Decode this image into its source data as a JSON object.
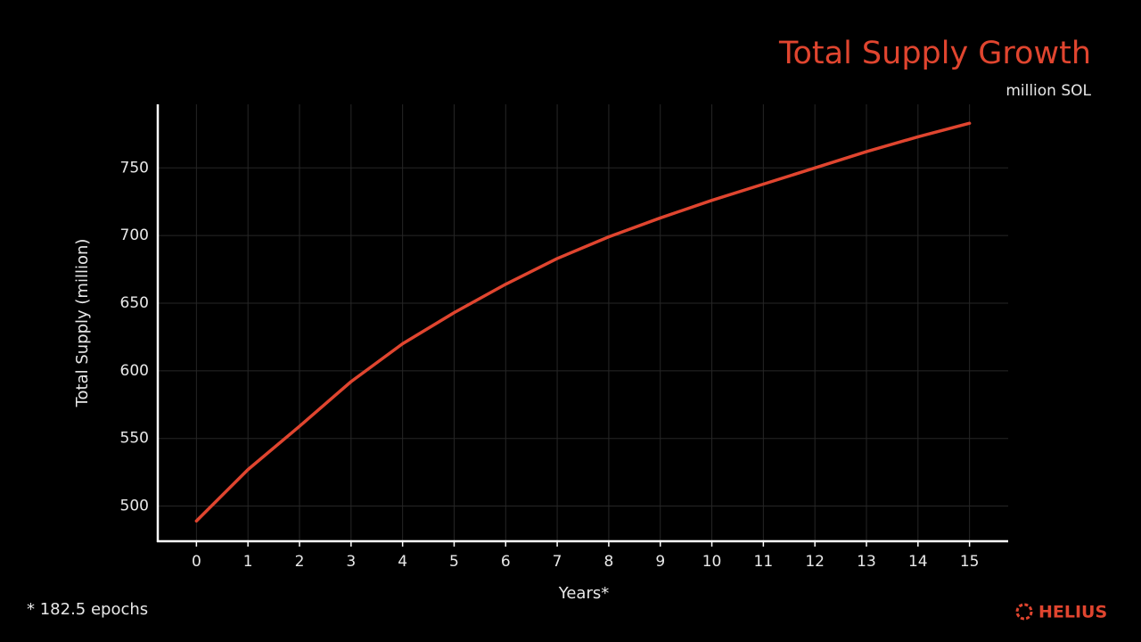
{
  "chart_data": {
    "type": "line",
    "title": "Total Supply Growth",
    "subtitle": "million SOL",
    "x_label": "Years*",
    "y_label": "Total Supply (million)",
    "footnote": "* 182.5 epochs",
    "brand": "HELIUS",
    "x": [
      0,
      1,
      2,
      3,
      4,
      5,
      6,
      7,
      8,
      9,
      10,
      11,
      12,
      13,
      14,
      15
    ],
    "series": [
      {
        "name": "Total Supply",
        "color": "#e0452f",
        "values": [
          489,
          527,
          559,
          592,
          620,
          643,
          664,
          683,
          699,
          713,
          726,
          738,
          750,
          762,
          773,
          783
        ]
      }
    ],
    "xlim": [
      -0.75,
      15.75
    ],
    "xticks": [
      0,
      1,
      2,
      3,
      4,
      5,
      6,
      7,
      8,
      9,
      10,
      11,
      12,
      13,
      14,
      15
    ],
    "ylim": [
      474,
      797
    ],
    "yticks": [
      500,
      550,
      600,
      650,
      700,
      750
    ],
    "grid": true
  }
}
